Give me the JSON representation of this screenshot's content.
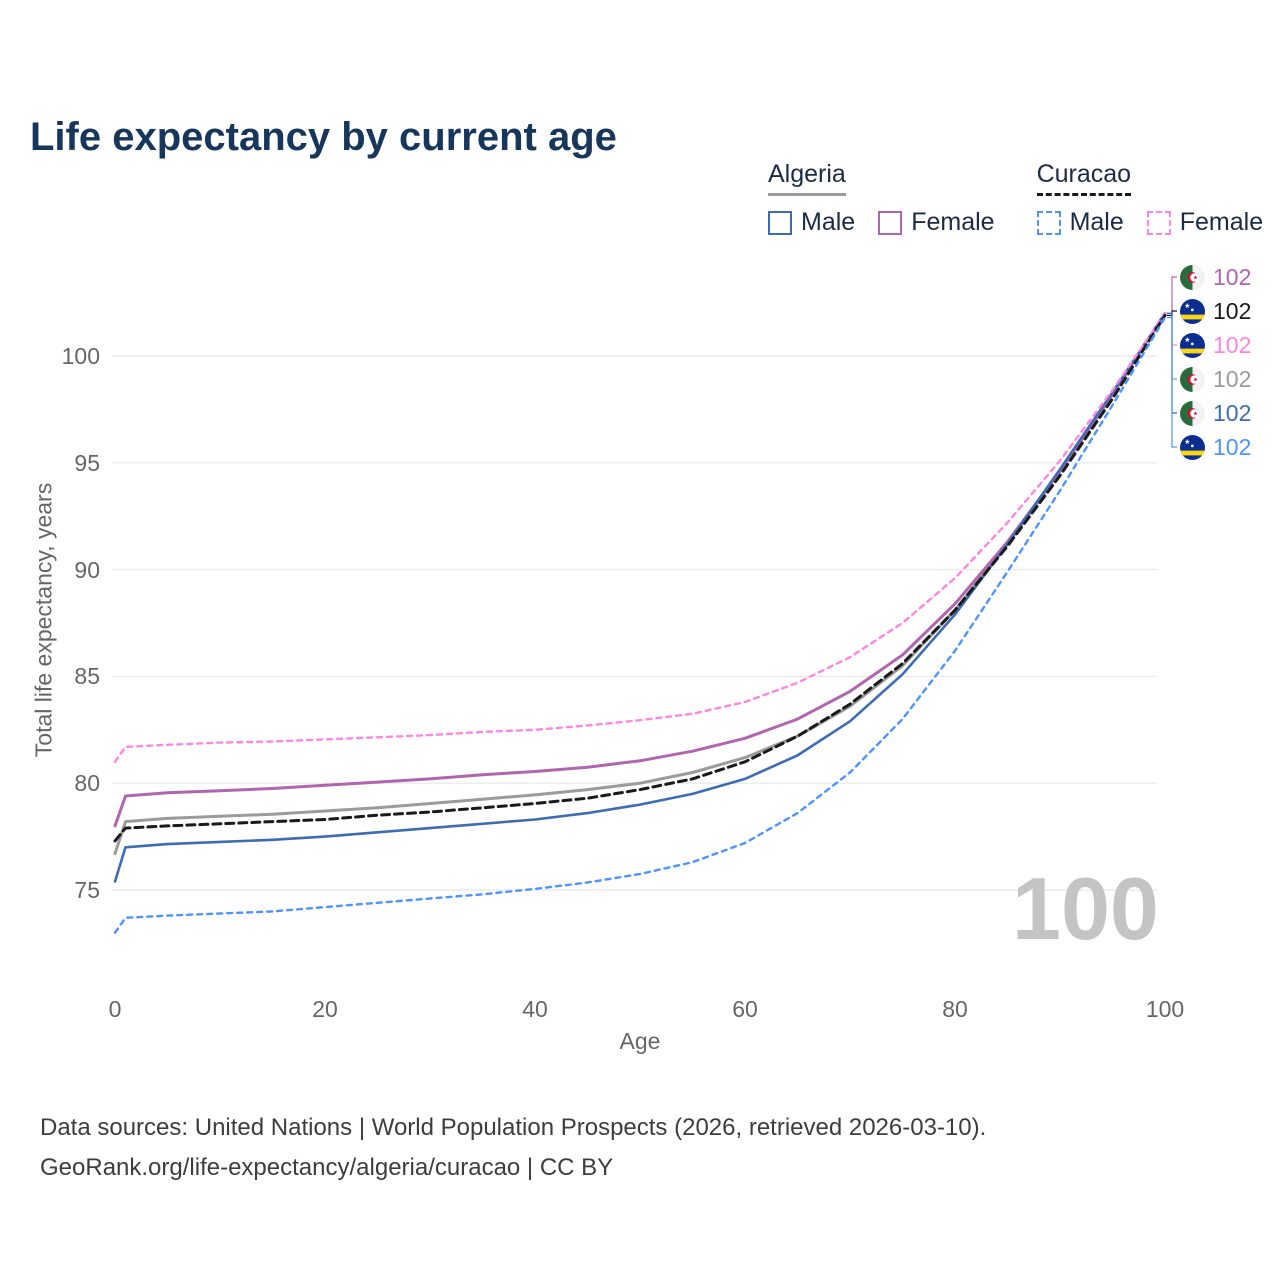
{
  "title": "Life expectancy by current age",
  "legend": {
    "groups": [
      {
        "label": "Algeria",
        "items": [
          {
            "label": "Male"
          },
          {
            "label": "Female"
          }
        ]
      },
      {
        "label": "Curacao",
        "items": [
          {
            "label": "Male"
          },
          {
            "label": "Female"
          }
        ]
      }
    ]
  },
  "axes": {
    "x_label": "Age",
    "y_label": "Total life expectancy, years"
  },
  "watermark": "100",
  "end_labels": [
    {
      "series": "algeria_female",
      "flag": "algeria",
      "value": "102",
      "color": "#b164af"
    },
    {
      "series": "curacao_both",
      "flag": "curacao",
      "value": "102",
      "color": "#1a1a1a"
    },
    {
      "series": "curacao_female",
      "flag": "curacao",
      "value": "102",
      "color": "#ff85e2"
    },
    {
      "series": "algeria_both",
      "flag": "algeria",
      "value": "102",
      "color": "#9b9b9b"
    },
    {
      "series": "algeria_male",
      "flag": "algeria",
      "value": "102",
      "color": "#3d6cb5"
    },
    {
      "series": "curacao_male",
      "flag": "curacao",
      "value": "102",
      "color": "#4d94ff"
    }
  ],
  "footer": {
    "line1": "Data sources: United Nations | World Population Prospects (2026, retrieved 2026-03-10).",
    "line2": "GeoRank.org/life-expectancy/algeria/curacao | CC BY"
  },
  "chart_data": {
    "type": "line",
    "title": "Life expectancy by current age",
    "xlabel": "Age",
    "ylabel": "Total life expectancy, years",
    "xlim": [
      0,
      100
    ],
    "ylim": [
      73,
      102
    ],
    "xticks": [
      0,
      20,
      40,
      60,
      80,
      100
    ],
    "yticks": [
      75,
      80,
      85,
      90,
      95,
      100
    ],
    "grid": "horizontal",
    "legend_position": "top-right",
    "ages": [
      0,
      1,
      5,
      10,
      15,
      20,
      25,
      30,
      35,
      40,
      45,
      50,
      55,
      60,
      65,
      70,
      75,
      80,
      85,
      90,
      95,
      100
    ],
    "series": [
      {
        "id": "algeria_both",
        "name": "Algeria Both sexes",
        "country": "Algeria",
        "sex": "Both",
        "color": "#9b9b9b",
        "style": "solid",
        "width": 3,
        "values": [
          76.7,
          78.2,
          78.35,
          78.45,
          78.55,
          78.7,
          78.85,
          79.05,
          79.25,
          79.45,
          79.7,
          80.0,
          80.5,
          81.2,
          82.2,
          83.6,
          85.5,
          88.1,
          91.2,
          94.6,
          98.2,
          102
        ]
      },
      {
        "id": "algeria_female",
        "name": "Algeria Female",
        "country": "Algeria",
        "sex": "Female",
        "color": "#b164af",
        "style": "solid",
        "width": 3,
        "values": [
          78.0,
          79.4,
          79.55,
          79.65,
          79.75,
          79.9,
          80.05,
          80.2,
          80.4,
          80.55,
          80.75,
          81.05,
          81.5,
          82.1,
          83.0,
          84.3,
          86.0,
          88.4,
          91.3,
          94.6,
          98.2,
          102
        ]
      },
      {
        "id": "algeria_male",
        "name": "Algeria Male",
        "country": "Algeria",
        "sex": "Male",
        "color": "#3d6cb5",
        "style": "solid",
        "width": 2.6,
        "values": [
          75.4,
          77.0,
          77.15,
          77.25,
          77.35,
          77.5,
          77.7,
          77.9,
          78.1,
          78.3,
          78.6,
          79.0,
          79.5,
          80.2,
          81.3,
          82.9,
          85.1,
          87.9,
          91.2,
          94.7,
          98.3,
          102
        ]
      },
      {
        "id": "curacao_female",
        "name": "Curacao Female",
        "country": "Curacao",
        "sex": "Female",
        "color": "#ff85e2",
        "style": "dashed",
        "dash": "5 5",
        "width": 2.4,
        "values": [
          81.0,
          81.7,
          81.8,
          81.9,
          81.95,
          82.05,
          82.15,
          82.25,
          82.4,
          82.5,
          82.7,
          82.95,
          83.25,
          83.8,
          84.7,
          85.9,
          87.5,
          89.6,
          92.2,
          95.1,
          98.4,
          102
        ]
      },
      {
        "id": "curacao_both",
        "name": "Curacao Both sexes",
        "country": "Curacao",
        "sex": "Both",
        "color": "#1a1a1a",
        "style": "dashed",
        "dash": "8 5",
        "width": 3,
        "values": [
          77.3,
          77.9,
          78.0,
          78.1,
          78.2,
          78.3,
          78.5,
          78.65,
          78.85,
          79.05,
          79.3,
          79.7,
          80.2,
          81.0,
          82.2,
          83.7,
          85.6,
          88.1,
          91.1,
          94.4,
          98.0,
          101.9
        ]
      },
      {
        "id": "curacao_male",
        "name": "Curacao Male",
        "country": "Curacao",
        "sex": "Male",
        "color": "#4d94ff",
        "style": "dashed",
        "dash": "5 5",
        "width": 2.4,
        "values": [
          73.0,
          73.7,
          73.8,
          73.9,
          74.0,
          74.2,
          74.4,
          74.6,
          74.8,
          75.05,
          75.35,
          75.75,
          76.3,
          77.2,
          78.6,
          80.5,
          83.0,
          86.2,
          89.9,
          93.7,
          97.7,
          101.8
        ]
      }
    ]
  }
}
